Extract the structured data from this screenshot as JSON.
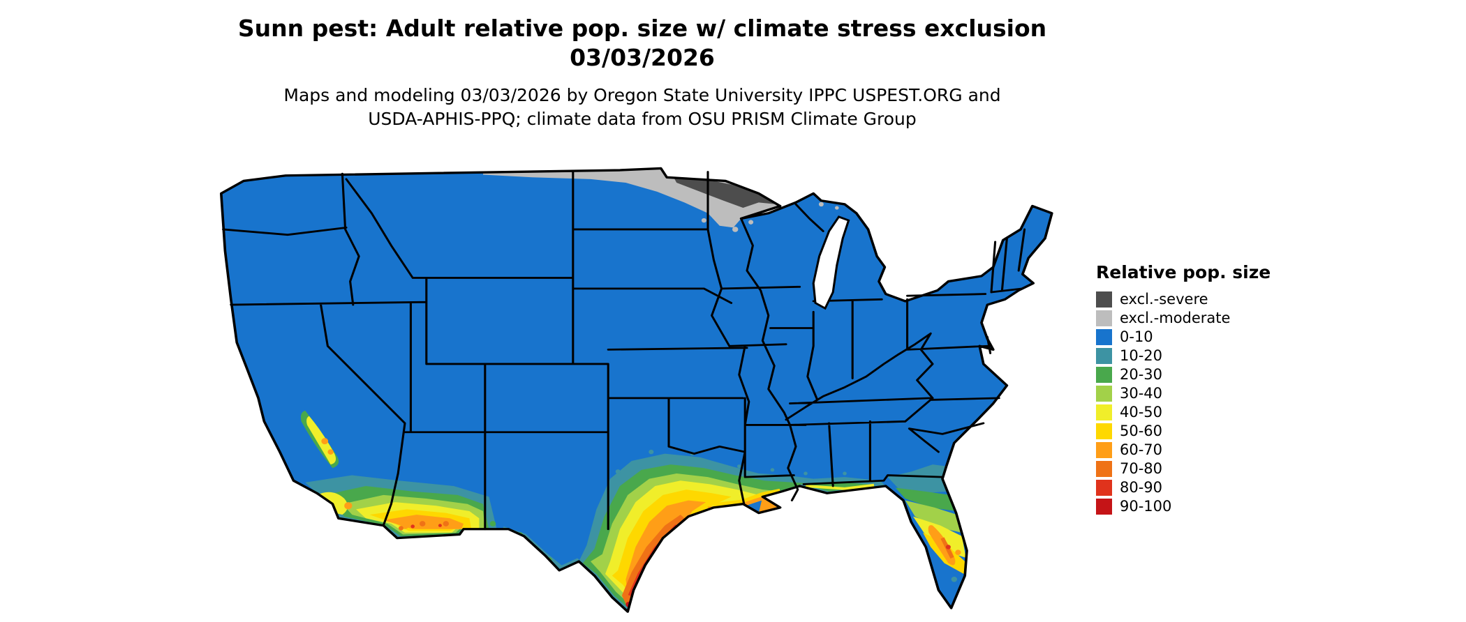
{
  "title": {
    "line1": "Sunn pest: Adult relative pop. size w/ climate stress exclusion",
    "line2": "03/03/2026"
  },
  "subtitle": {
    "line1": "Maps and modeling 03/03/2026 by Oregon State University IPPC USPEST.ORG and",
    "line2": "USDA-APHIS-PPQ; climate data from OSU PRISM Climate Group"
  },
  "legend": {
    "title": "Relative pop. size",
    "entries": [
      {
        "label": "excl.-severe",
        "color": "#4d4d4d"
      },
      {
        "label": "excl.-moderate",
        "color": "#bdbdbd"
      },
      {
        "label": "0-10",
        "color": "#1874cd"
      },
      {
        "label": "10-20",
        "color": "#3d93a3"
      },
      {
        "label": "20-30",
        "color": "#49a84c"
      },
      {
        "label": "30-40",
        "color": "#a2d149"
      },
      {
        "label": "40-50",
        "color": "#f0ee2a"
      },
      {
        "label": "50-60",
        "color": "#fed800"
      },
      {
        "label": "60-70",
        "color": "#ff9e17"
      },
      {
        "label": "70-80",
        "color": "#ef7216"
      },
      {
        "label": "80-90",
        "color": "#e0331c"
      },
      {
        "label": "90-100",
        "color": "#c51417"
      }
    ]
  },
  "map": {
    "region": "Continental United States with state boundaries",
    "base_category": "0-10",
    "features": [
      {
        "area": "northern Minnesota arrowhead and adjacent North Dakota border",
        "category": "excl.-severe"
      },
      {
        "area": "strip along Canada border from eastern Montana across North Dakota into northern Minnesota",
        "category": "excl.-moderate"
      },
      {
        "area": "southern Texas tip and lower Gulf coast of Texas",
        "category": "70-100"
      },
      {
        "area": "south-central Texas inland",
        "category": "30-70"
      },
      {
        "area": "coastal Louisiana, Mississippi, Alabama",
        "category": "40-70"
      },
      {
        "area": "central Florida peninsula",
        "category": "40-80"
      },
      {
        "area": "northern Florida and southeast Georgia coast",
        "category": "10-30"
      },
      {
        "area": "southern Arizona (Yuma-Phoenix-Tucson) into southwest New Mexico",
        "category": "40-80"
      },
      {
        "area": "southern California coast and inland valleys",
        "category": "30-70"
      },
      {
        "area": "southern California Central Valley",
        "category": "20-60"
      },
      {
        "area": "remainder of contiguous US",
        "category": "0-10"
      }
    ]
  }
}
